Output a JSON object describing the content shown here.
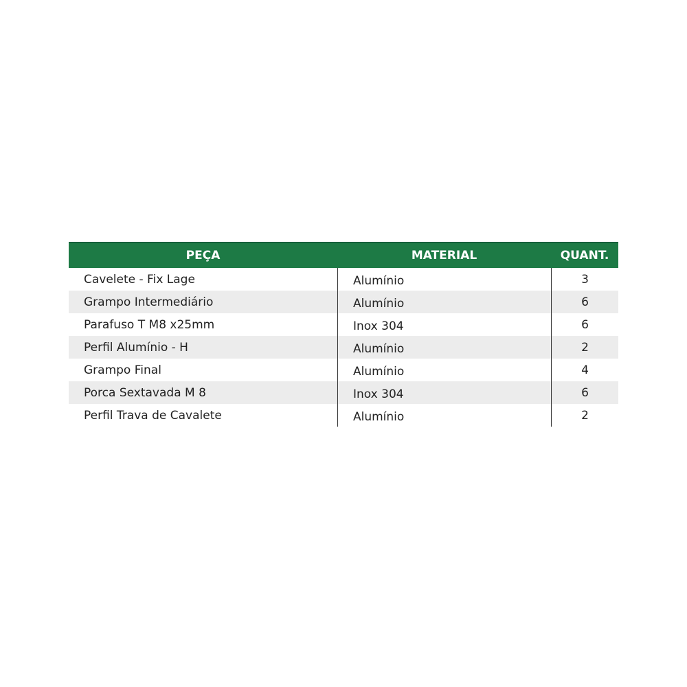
{
  "colors": {
    "header_bg": "#1d7a45",
    "stripe": "#ececec"
  },
  "header": {
    "part": "PEÇA",
    "material": "MATERIAL",
    "quantity": "QUANT."
  },
  "rows": [
    {
      "part": "Cavelete - Fix Lage",
      "material": "Alumínio",
      "quantity": "3"
    },
    {
      "part": "Grampo Intermediário",
      "material": "Alumínio",
      "quantity": "6"
    },
    {
      "part": "Parafuso T M8 x25mm",
      "material": "Inox 304",
      "quantity": "6"
    },
    {
      "part": "Perfil Alumínio - H",
      "material": "Alumínio",
      "quantity": "2"
    },
    {
      "part": "Grampo Final",
      "material": "Alumínio",
      "quantity": "4"
    },
    {
      "part": "Porca Sextavada M 8",
      "material": "Inox 304",
      "quantity": "6"
    },
    {
      "part": "Perfil Trava de Cavalete",
      "material": "Alumínio",
      "quantity": "2"
    }
  ]
}
